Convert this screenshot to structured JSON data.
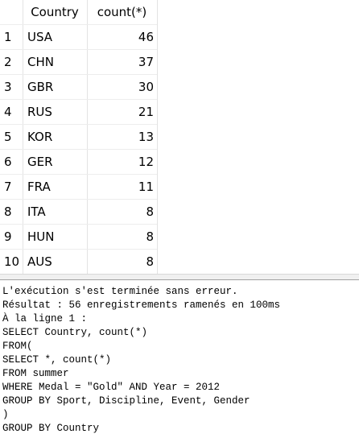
{
  "table": {
    "columns": [
      "Country",
      "count(*)"
    ],
    "rows": [
      {
        "n": 1,
        "country": "USA",
        "count": 46
      },
      {
        "n": 2,
        "country": "CHN",
        "count": 37
      },
      {
        "n": 3,
        "country": "GBR",
        "count": 30
      },
      {
        "n": 4,
        "country": "RUS",
        "count": 21
      },
      {
        "n": 5,
        "country": "KOR",
        "count": 13
      },
      {
        "n": 6,
        "country": "GER",
        "count": 12
      },
      {
        "n": 7,
        "country": "FRA",
        "count": 11
      },
      {
        "n": 8,
        "country": "ITA",
        "count": 8
      },
      {
        "n": 9,
        "country": "HUN",
        "count": 8
      },
      {
        "n": 10,
        "country": "AUS",
        "count": 8
      }
    ]
  },
  "log": {
    "lines": [
      "L'exécution s'est terminée sans erreur.",
      "Résultat : 56 enregistrements ramenés en 100ms",
      "À la ligne 1 :",
      "SELECT Country, count(*)",
      "FROM(",
      "SELECT *, count(*)",
      "FROM summer",
      "WHERE Medal = \"Gold\" AND Year = 2012",
      "GROUP BY Sport, Discipline, Event, Gender",
      ")",
      "GROUP BY Country"
    ]
  }
}
